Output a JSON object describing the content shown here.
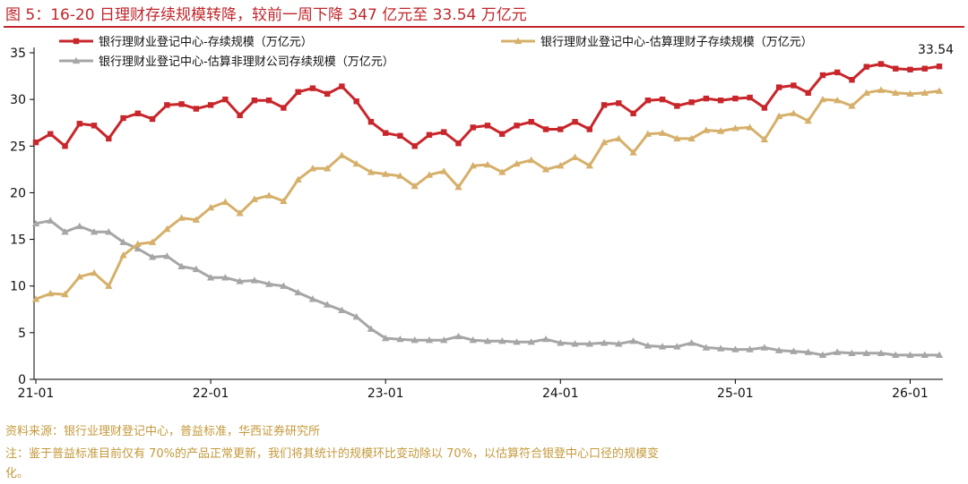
{
  "figure": {
    "title": "图 5：16-20 日理财存续规模转降，较前一周下降 347 亿元至 33.54 万亿元",
    "source": "资料来源：银行业理财登记中心，普益标准，华西证券研究所",
    "note_line1": "注：鉴于普益标准目前仅有 70%的产品正常更新，我们将其统计的规模环比变动除以 70%，以估算符合银登中心口径的规模变",
    "note_line2": "化。"
  },
  "chart_data": {
    "type": "line",
    "ylim": [
      0,
      35
    ],
    "y_ticks": [
      0,
      5,
      10,
      15,
      20,
      25,
      30,
      35
    ],
    "x_tick_labels": [
      "21-01",
      "22-01",
      "23-01",
      "24-01",
      "25-01",
      "26-01"
    ],
    "x_tick_positions": [
      0,
      12,
      24,
      36,
      48,
      60
    ],
    "end_label": "33.54",
    "grid": false,
    "legend": "top",
    "series": [
      {
        "name": "银行理财业登记中心-存续规模（万亿元）",
        "color": "#c8262b",
        "marker": "square",
        "values": [
          25.4,
          26.3,
          25.0,
          27.4,
          27.2,
          25.8,
          28.0,
          28.5,
          27.9,
          29.4,
          29.5,
          29.0,
          29.4,
          30.0,
          28.3,
          29.9,
          29.9,
          29.1,
          30.8,
          31.2,
          30.6,
          31.4,
          29.8,
          27.6,
          26.4,
          26.1,
          25.0,
          26.2,
          26.5,
          25.3,
          27.0,
          27.2,
          26.3,
          27.2,
          27.6,
          26.8,
          26.8,
          27.6,
          26.8,
          29.4,
          29.6,
          28.5,
          29.9,
          30.0,
          29.3,
          29.7,
          30.1,
          29.9,
          30.1,
          30.2,
          29.1,
          31.3,
          31.5,
          30.7,
          32.6,
          32.9,
          32.1,
          33.5,
          33.8,
          33.3,
          33.2,
          33.3,
          33.54
        ]
      },
      {
        "name": "银行理财业登记中心-估算理财子存续规模（万亿元）",
        "color": "#d6b06a",
        "marker": "triangle",
        "values": [
          8.6,
          9.2,
          9.1,
          11.0,
          11.4,
          10.0,
          13.3,
          14.5,
          14.7,
          16.1,
          17.3,
          17.1,
          18.4,
          19.0,
          17.8,
          19.3,
          19.7,
          19.1,
          21.4,
          22.6,
          22.6,
          24.0,
          23.1,
          22.2,
          22.0,
          21.8,
          20.7,
          21.9,
          22.3,
          20.6,
          22.9,
          23.0,
          22.2,
          23.1,
          23.5,
          22.5,
          22.9,
          23.8,
          22.9,
          25.4,
          25.8,
          24.3,
          26.3,
          26.4,
          25.8,
          25.8,
          26.7,
          26.6,
          26.9,
          27.0,
          25.7,
          28.2,
          28.5,
          27.7,
          30.0,
          29.9,
          29.3,
          30.7,
          31.0,
          30.7,
          30.6,
          30.7,
          30.9
        ]
      },
      {
        "name": "银行理财业登记中心-估算非理财公司存续规模（万亿元）",
        "color": "#a6a6a6",
        "marker": "triangle",
        "values": [
          16.7,
          17.0,
          15.8,
          16.4,
          15.8,
          15.8,
          14.7,
          14.0,
          13.1,
          13.2,
          12.1,
          11.8,
          10.9,
          10.9,
          10.5,
          10.6,
          10.2,
          10.0,
          9.3,
          8.6,
          8.0,
          7.4,
          6.7,
          5.4,
          4.4,
          4.3,
          4.2,
          4.2,
          4.2,
          4.6,
          4.2,
          4.1,
          4.1,
          4.0,
          4.0,
          4.3,
          3.9,
          3.8,
          3.8,
          3.9,
          3.8,
          4.1,
          3.6,
          3.5,
          3.5,
          3.9,
          3.4,
          3.3,
          3.2,
          3.2,
          3.4,
          3.1,
          3.0,
          2.9,
          2.6,
          2.9,
          2.8,
          2.8,
          2.8,
          2.6,
          2.6,
          2.6,
          2.6
        ]
      }
    ]
  }
}
